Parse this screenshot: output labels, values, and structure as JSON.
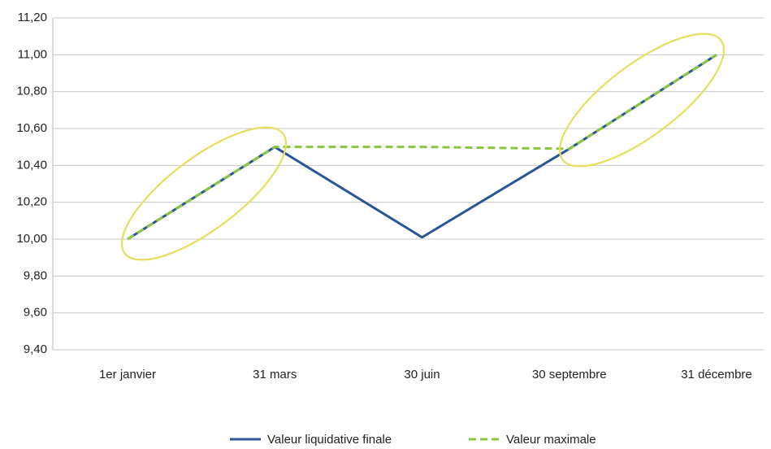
{
  "chart_data": {
    "type": "line",
    "categories": [
      "1er janvier",
      "31 mars",
      "30 juin",
      "30 septembre",
      "31 décembre"
    ],
    "series": [
      {
        "name": "Valeur liquidative finale",
        "color": "#2b5598",
        "dash": false,
        "values": [
          10.0,
          10.5,
          10.01,
          10.49,
          11.0
        ]
      },
      {
        "name": "Valeur maximale",
        "color": "#8cc63f",
        "dash": true,
        "values": [
          10.0,
          10.5,
          10.5,
          10.49,
          11.0
        ]
      }
    ],
    "ylim": [
      9.4,
      11.2
    ],
    "yticks": [
      {
        "value": 9.4,
        "label": "9,40"
      },
      {
        "value": 9.6,
        "label": "9,60"
      },
      {
        "value": 9.8,
        "label": "9,80"
      },
      {
        "value": 10.0,
        "label": "10,00"
      },
      {
        "value": 10.2,
        "label": "10,20"
      },
      {
        "value": 10.4,
        "label": "10,40"
      },
      {
        "value": 10.6,
        "label": "10,60"
      },
      {
        "value": 10.8,
        "label": "10,80"
      },
      {
        "value": 11.0,
        "label": "11,00"
      },
      {
        "value": 11.2,
        "label": "11,20"
      }
    ],
    "grid": true,
    "legend": "bottom"
  }
}
